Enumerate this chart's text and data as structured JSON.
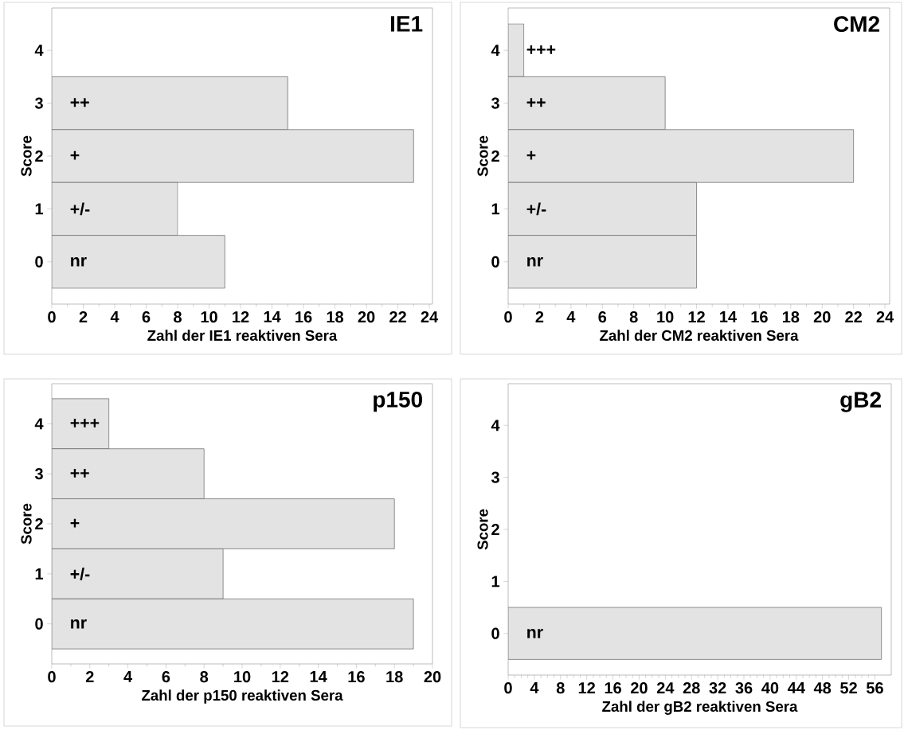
{
  "chart_data": [
    {
      "type": "bar",
      "orientation": "horizontal",
      "title": "IE1",
      "xlabel": "Zahl der IE1 reaktiven Sera",
      "ylabel": "Score",
      "categories": [
        "4",
        "3",
        "2",
        "1",
        "0"
      ],
      "values": [
        null,
        15,
        23,
        8,
        11
      ],
      "value_labels": [
        null,
        "++",
        "+",
        "+/-",
        "nr"
      ],
      "color": "#e3e3e3",
      "xlim": [
        0,
        24.2
      ],
      "xticks": [
        0,
        2,
        4,
        6,
        8,
        10,
        12,
        14,
        16,
        18,
        20,
        22,
        24
      ]
    },
    {
      "type": "bar",
      "orientation": "horizontal",
      "title": "CM2",
      "xlabel": "Zahl der CM2 reaktiven Sera",
      "ylabel": "Score",
      "categories": [
        "4",
        "3",
        "2",
        "1",
        "0"
      ],
      "values": [
        1,
        10,
        22,
        12,
        12
      ],
      "value_labels": [
        "+++",
        "++",
        "+",
        "+/-",
        "nr"
      ],
      "color": "#e3e3e3",
      "xlim": [
        0,
        24.3
      ],
      "xticks": [
        0,
        2,
        4,
        6,
        8,
        10,
        12,
        14,
        16,
        18,
        20,
        22,
        24
      ]
    },
    {
      "type": "bar",
      "orientation": "horizontal",
      "title": "p150",
      "xlabel": "Zahl der p150 reaktiven Sera",
      "ylabel": "Score",
      "categories": [
        "4",
        "3",
        "2",
        "1",
        "0"
      ],
      "values": [
        3,
        8,
        18,
        9,
        19
      ],
      "value_labels": [
        "+++",
        "++",
        "+",
        "+/-",
        "nr"
      ],
      "color": "#e3e3e3",
      "xlim": [
        0,
        20
      ],
      "xticks": [
        0,
        2,
        4,
        6,
        8,
        10,
        12,
        14,
        16,
        18,
        20
      ]
    },
    {
      "type": "bar",
      "orientation": "horizontal",
      "title": "gB2",
      "xlabel": "Zahl der gB2 reaktiven Sera",
      "ylabel": "Score",
      "categories": [
        "4",
        "3",
        "2",
        "1",
        "0"
      ],
      "values": [
        null,
        null,
        null,
        null,
        57
      ],
      "value_labels": [
        null,
        null,
        null,
        null,
        "nr"
      ],
      "color": "#e3e3e3",
      "xlim": [
        0,
        58.5
      ],
      "xticks": [
        0,
        4,
        8,
        12,
        16,
        20,
        24,
        28,
        32,
        36,
        40,
        44,
        48,
        52,
        56
      ]
    }
  ]
}
